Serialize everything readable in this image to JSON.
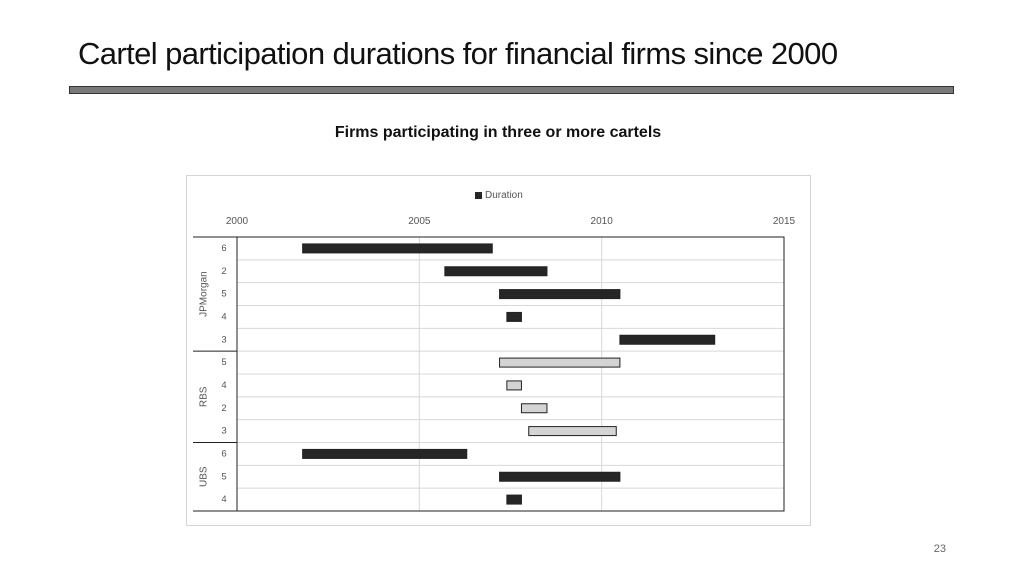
{
  "slide": {
    "title": "Cartel participation durations for financial firms since 2000",
    "page_number": "23"
  },
  "chart_data": {
    "type": "bar",
    "subtype": "horizontal-range (gantt)",
    "title": "Firms participating in three or more cartels",
    "legend": {
      "position": "top",
      "entries": [
        "Duration"
      ]
    },
    "x_axis": {
      "position": "top",
      "min": 2000,
      "max": 2015,
      "ticks": [
        2000,
        2005,
        2010,
        2015
      ]
    },
    "grid": true,
    "groups": [
      {
        "name": "JPMorgan",
        "rows": [
          {
            "label": "6",
            "start": 2001.8,
            "end": 2007.0,
            "fill": "#262626"
          },
          {
            "label": "2",
            "start": 2005.7,
            "end": 2008.5,
            "fill": "#262626"
          },
          {
            "label": "5",
            "start": 2007.2,
            "end": 2010.5,
            "fill": "#262626"
          },
          {
            "label": "4",
            "start": 2007.4,
            "end": 2007.8,
            "fill": "#262626"
          },
          {
            "label": "3",
            "start": 2010.5,
            "end": 2013.1,
            "fill": "#262626"
          }
        ]
      },
      {
        "name": "RBS",
        "rows": [
          {
            "label": "5",
            "start": 2007.2,
            "end": 2010.5,
            "fill": "#d4d4d4"
          },
          {
            "label": "4",
            "start": 2007.4,
            "end": 2007.8,
            "fill": "#d4d4d4"
          },
          {
            "label": "2",
            "start": 2007.8,
            "end": 2008.5,
            "fill": "#d4d4d4"
          },
          {
            "label": "3",
            "start": 2008.0,
            "end": 2010.4,
            "fill": "#d4d4d4"
          }
        ]
      },
      {
        "name": "UBS",
        "rows": [
          {
            "label": "6",
            "start": 2001.8,
            "end": 2006.3,
            "fill": "#262626"
          },
          {
            "label": "5",
            "start": 2007.2,
            "end": 2010.5,
            "fill": "#262626"
          },
          {
            "label": "4",
            "start": 2007.4,
            "end": 2007.8,
            "fill": "#262626"
          }
        ]
      }
    ]
  }
}
